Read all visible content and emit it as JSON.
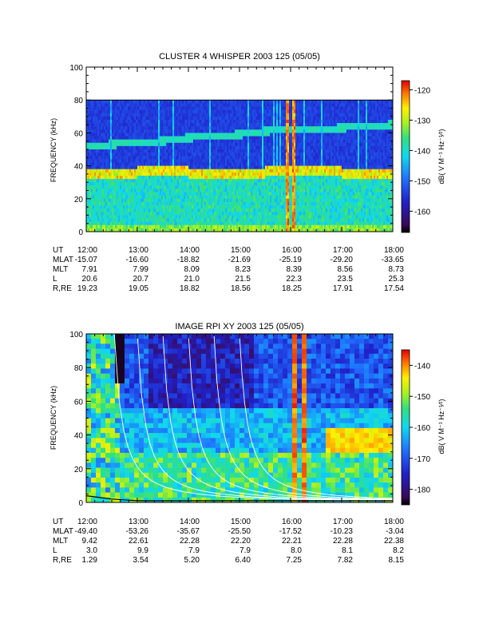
{
  "chart_data": [
    {
      "type": "heatmap",
      "title": "CLUSTER 4 WHISPER 2003 125 (05/05)",
      "ylabel": "FREQUENCY (kHz)",
      "ylim": [
        0,
        100
      ],
      "yticks": [
        "0",
        "20",
        "40",
        "60",
        "80",
        "100"
      ],
      "xticks": [
        "12:00",
        "13:00",
        "14:00",
        "15:00",
        "16:00",
        "17:00",
        "18:00"
      ],
      "data_fmax_khz": 80,
      "colorbar": {
        "label": "dB( V M⁻¹ Hz⁻¹⁄²)",
        "range": [
          -167,
          -117
        ],
        "ticks": [
          "-120",
          "-130",
          "-140",
          "-150",
          "-160"
        ]
      },
      "features": {
        "upper_band_khz": [
          [
            12.2,
            52
          ],
          [
            12.5,
            53
          ],
          [
            13.0,
            54
          ],
          [
            13.5,
            55
          ],
          [
            14.0,
            57
          ],
          [
            14.5,
            58
          ],
          [
            15.0,
            59
          ],
          [
            15.5,
            61
          ],
          [
            16.0,
            62
          ],
          [
            16.5,
            62
          ],
          [
            17.0,
            63
          ],
          [
            17.5,
            64
          ],
          [
            18.0,
            65
          ]
        ],
        "lower_band_khz": [
          [
            12.0,
            34
          ],
          [
            13.0,
            36
          ],
          [
            14.0,
            36
          ],
          [
            15.0,
            35
          ],
          [
            16.0,
            37
          ],
          [
            17.0,
            36
          ],
          [
            18.0,
            34
          ]
        ],
        "intense_vertical_times": [
          15.95,
          16.05
        ]
      },
      "rows": [
        {
          "label": "UT",
          "values": [
            "12:00",
            "13:00",
            "14:00",
            "15:00",
            "16:00",
            "17:00",
            "18:00"
          ]
        },
        {
          "label": "MLAT",
          "values": [
            "-15.07",
            "-16.60",
            "-18.82",
            "-21.69",
            "-25.19",
            "-29.20",
            "-33.65"
          ]
        },
        {
          "label": "MLT",
          "values": [
            "7.91",
            "7.99",
            "8.09",
            "8.23",
            "8.39",
            "8.56",
            "8.73"
          ]
        },
        {
          "label": "L",
          "values": [
            "20.6",
            "20.7",
            "21.0",
            "21.5",
            "22.3",
            "23.5",
            "25.3"
          ]
        },
        {
          "label": "R,RE",
          "values": [
            "19.23",
            "19.05",
            "18.82",
            "18.56",
            "18.25",
            "17.91",
            "17.54"
          ]
        }
      ]
    },
    {
      "type": "heatmap",
      "title": "IMAGE RPI XY 2003 125 (05/05)",
      "ylabel": "FREQUENCY (kHz)",
      "ylim": [
        0,
        100
      ],
      "yticks": [
        "0",
        "20",
        "40",
        "60",
        "80",
        "100"
      ],
      "xticks": [
        "12:00",
        "13:00",
        "14:00",
        "15:00",
        "16:00",
        "17:00",
        "18:00"
      ],
      "colorbar": {
        "label": "dB( V M⁻¹ Hz⁻¹⁄²)",
        "range": [
          -185,
          -135
        ],
        "ticks": [
          "-140",
          "-150",
          "-160",
          "-170",
          "-180"
        ]
      },
      "features": {
        "overlay_curve_start_times": [
          12.55,
          13.0,
          13.5,
          14.0,
          14.5,
          15.0
        ],
        "bottom_curve": [
          [
            12.0,
            4
          ],
          [
            12.5,
            2
          ],
          [
            13.0,
            1
          ],
          [
            15.0,
            1
          ],
          [
            18.0,
            1
          ]
        ],
        "intense_vertical_times": [
          16.1,
          16.3
        ]
      },
      "rows": [
        {
          "label": "UT",
          "values": [
            "12:00",
            "13:00",
            "14:00",
            "15:00",
            "16:00",
            "17:00",
            "18:00"
          ]
        },
        {
          "label": "MLAT",
          "values": [
            "-49.40",
            "-53.26",
            "-35.67",
            "-25.50",
            "-17.52",
            "-10.23",
            "-3.04"
          ]
        },
        {
          "label": "MLT",
          "values": [
            "9.42",
            "22.61",
            "22.28",
            "22.20",
            "22.21",
            "22.28",
            "22.38"
          ]
        },
        {
          "label": "L",
          "values": [
            "3.0",
            "9.9",
            "7.9",
            "7.9",
            "8.0",
            "8.1",
            "8.2"
          ]
        },
        {
          "label": "R,RE",
          "values": [
            "1.29",
            "3.54",
            "5.20",
            "6.40",
            "7.25",
            "7.82",
            "8.15"
          ]
        }
      ]
    }
  ]
}
